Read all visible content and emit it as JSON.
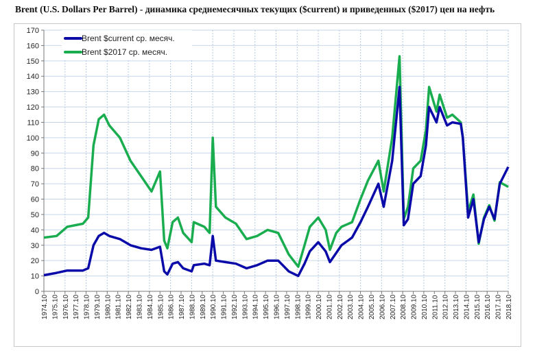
{
  "chart_data": {
    "type": "line",
    "title": "Brent (U.S. Dollars Per Barrel) - динамика среднемесячных текущих ($current) и приведенных ($2017) цен на нефть",
    "xlabel": "",
    "ylabel": "",
    "ylim": [
      0,
      170
    ],
    "yticks": [
      0,
      10,
      20,
      30,
      40,
      50,
      60,
      70,
      80,
      90,
      100,
      110,
      120,
      130,
      140,
      150,
      160,
      170
    ],
    "xlim": [
      1974.8,
      2018.8
    ],
    "xtick_labels": [
      "1974.10",
      "1975.10",
      "1976.10",
      "1977.10",
      "1978.10",
      "1979.10",
      "1980.10",
      "1981.10",
      "1982.10",
      "1983.10",
      "1984.10",
      "1985.10",
      "1986.10",
      "1987.10",
      "1988.10",
      "1989.10",
      "1990.10",
      "1991.10",
      "1992.10",
      "1993.10",
      "1994.10",
      "1995.10",
      "1996.10",
      "1997.10",
      "1998.10",
      "1999.10",
      "2000.10",
      "2001.10",
      "2002.10",
      "2003.10",
      "2004.10",
      "2005.10",
      "2006.10",
      "2007.10",
      "2008.10",
      "2009.10",
      "2010.10",
      "2011.10",
      "2012.10",
      "2013.10",
      "2014.10",
      "2015.10",
      "2016.10",
      "2017.10",
      "2018.10"
    ],
    "legend_position": "top-left",
    "grid": true,
    "x": [
      1974.8,
      1976,
      1977,
      1978.5,
      1979,
      1979.5,
      1980,
      1980.5,
      1981,
      1982,
      1983,
      1984,
      1985,
      1985.8,
      1986.2,
      1986.5,
      1987,
      1987.5,
      1988,
      1988.8,
      1989,
      1990,
      1990.5,
      1990.8,
      1991.1,
      1992,
      1993,
      1994,
      1995,
      1996,
      1997,
      1998,
      1998.9,
      1999.5,
      2000,
      2000.8,
      2001.5,
      2001.9,
      2002.5,
      2003,
      2004,
      2004.8,
      2005.5,
      2006.5,
      2007,
      2007.8,
      2008.5,
      2008.9,
      2009.3,
      2009.8,
      2010.5,
      2011,
      2011.3,
      2012,
      2012.3,
      2013,
      2013.5,
      2014.3,
      2014.5,
      2015,
      2015.5,
      2016,
      2016.5,
      2017,
      2017.5,
      2018,
      2018.8
    ],
    "series": [
      {
        "name": "Brent $current ср. месяч.",
        "color": "#0a0aa8",
        "values": [
          10.5,
          12,
          13.5,
          13.5,
          15,
          30,
          36,
          38,
          36,
          34,
          30,
          28,
          27,
          29,
          13,
          11,
          18,
          19,
          15,
          13,
          17,
          18,
          17,
          36,
          20,
          19,
          18,
          15,
          17,
          20,
          20,
          13,
          10,
          18,
          26,
          32,
          26,
          19,
          25,
          30,
          35,
          45,
          55,
          70,
          55,
          85,
          133,
          43,
          47,
          70,
          75,
          95,
          120,
          110,
          120,
          108,
          110,
          109,
          100,
          48,
          60,
          32,
          47,
          55,
          47,
          70,
          81
        ]
      },
      {
        "name": "Brent $2017 ср. месяч.",
        "color": "#1aad50",
        "values": [
          35,
          36,
          42,
          44,
          48,
          95,
          112,
          115,
          108,
          100,
          85,
          75,
          65,
          78,
          33,
          28,
          45,
          48,
          38,
          32,
          45,
          42,
          38,
          100,
          55,
          48,
          44,
          34,
          36,
          40,
          38,
          24,
          16,
          30,
          42,
          48,
          40,
          27,
          38,
          42,
          45,
          60,
          72,
          85,
          65,
          100,
          153,
          47,
          55,
          80,
          85,
          105,
          133,
          117,
          128,
          113,
          115,
          110,
          100,
          52,
          63,
          31,
          48,
          56,
          46,
          71,
          68
        ]
      }
    ]
  }
}
